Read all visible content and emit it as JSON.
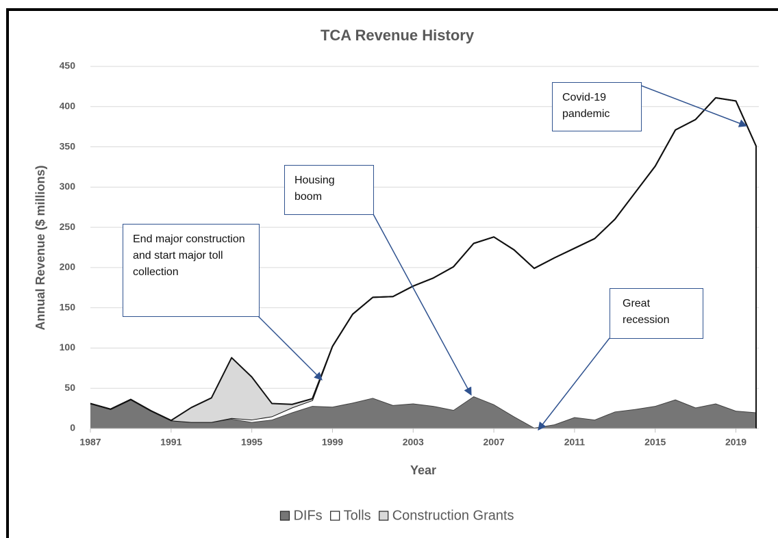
{
  "chart_data": {
    "type": "stacked-area",
    "title": "TCA Revenue History",
    "x_label": "Year",
    "y_label": "Annual Revenue ($ millions)",
    "x": [
      1987,
      1988,
      1989,
      1990,
      1991,
      1992,
      1993,
      1994,
      1995,
      1996,
      1997,
      1998,
      1999,
      2000,
      2001,
      2002,
      2003,
      2004,
      2005,
      2006,
      2007,
      2008,
      2009,
      2010,
      2011,
      2012,
      2013,
      2014,
      2015,
      2016,
      2017,
      2018,
      2019,
      2020
    ],
    "series": [
      {
        "name": "DIFs",
        "color": "#767676",
        "values": [
          31,
          24,
          36,
          22,
          10,
          8,
          8,
          12,
          8,
          11,
          20,
          28,
          27,
          32,
          38,
          29,
          31,
          28,
          23,
          40,
          30,
          15,
          1,
          5,
          14,
          11,
          21,
          24,
          28,
          36,
          26,
          31,
          22,
          20
        ]
      },
      {
        "name": "Tolls",
        "color": "#ffffff",
        "values": [
          0,
          0,
          0,
          0,
          0,
          0,
          0,
          1,
          3,
          4,
          6,
          7,
          75,
          110,
          125,
          135,
          146,
          159,
          178,
          190,
          208,
          207,
          198,
          207,
          210,
          225,
          239,
          269,
          298,
          335,
          358,
          380,
          385,
          331
        ]
      },
      {
        "name": "Construction Grants",
        "color": "#d9d9d9",
        "values": [
          0,
          0,
          0,
          0,
          0,
          18,
          30,
          75,
          53,
          16,
          4,
          2,
          0,
          0,
          0,
          0,
          0,
          0,
          0,
          0,
          0,
          0,
          0,
          0,
          0,
          0,
          0,
          0,
          0,
          0,
          0,
          0,
          0,
          0
        ]
      }
    ],
    "xlim": [
      1987,
      2020
    ],
    "xticks": [
      1987,
      1991,
      1995,
      1999,
      2003,
      2007,
      2011,
      2015,
      2019
    ],
    "ylim": [
      0,
      450
    ],
    "yticks": [
      0,
      50,
      100,
      150,
      200,
      250,
      300,
      350,
      400,
      450
    ],
    "grid": true,
    "legend": "bottom",
    "annotations": [
      {
        "text": "End major construction and start major toll collection"
      },
      {
        "text": "Housing boom"
      },
      {
        "text": "Great recession"
      },
      {
        "text": "Covid-19 pandemic"
      }
    ]
  }
}
